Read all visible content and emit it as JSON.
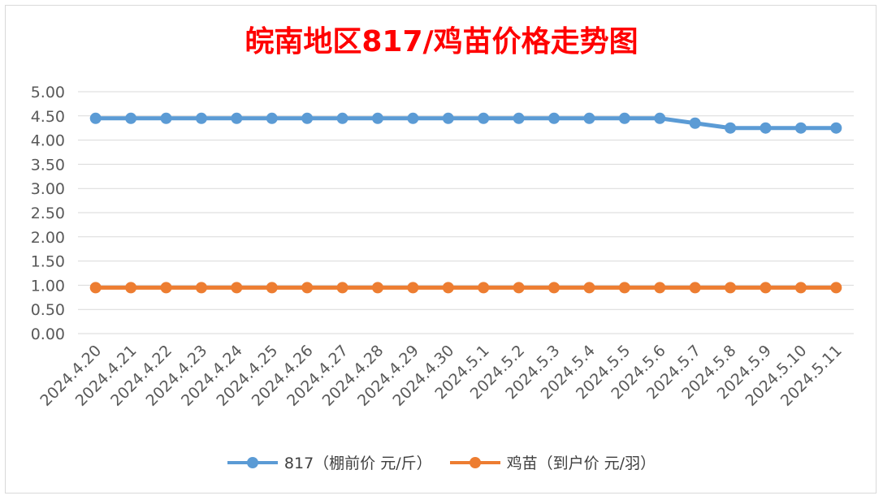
{
  "chart_data": {
    "type": "line",
    "title": "皖南地区817/鸡苗价格走势图",
    "xlabel": "",
    "ylabel": "",
    "ylim": [
      0,
      5
    ],
    "yticks": [
      "0.00",
      "0.50",
      "1.00",
      "1.50",
      "2.00",
      "2.50",
      "3.00",
      "3.50",
      "4.00",
      "4.50",
      "5.00"
    ],
    "grid": true,
    "legend_position": "bottom",
    "categories": [
      "2024.4.20",
      "2024.4.21",
      "2024.4.22",
      "2024.4.23",
      "2024.4.24",
      "2024.4.25",
      "2024.4.26",
      "2024.4.27",
      "2024.4.28",
      "2024.4.29",
      "2024.4.30",
      "2024.5.1",
      "2024.5.2",
      "2024.5.3",
      "2024.5.4",
      "2024.5.5",
      "2024.5.6",
      "2024.5.7",
      "2024.5.8",
      "2024.5.9",
      "2024.5.10",
      "2024.5.11"
    ],
    "series": [
      {
        "name": "817（棚前价 元/斤）",
        "color": "#5b9bd5",
        "values": [
          4.45,
          4.45,
          4.45,
          4.45,
          4.45,
          4.45,
          4.45,
          4.45,
          4.45,
          4.45,
          4.45,
          4.45,
          4.45,
          4.45,
          4.45,
          4.45,
          4.45,
          4.35,
          4.25,
          4.25,
          4.25,
          4.25
        ]
      },
      {
        "name": "鸡苗（到户价 元/羽）",
        "color": "#ed7d31",
        "values": [
          0.95,
          0.95,
          0.95,
          0.95,
          0.95,
          0.95,
          0.95,
          0.95,
          0.95,
          0.95,
          0.95,
          0.95,
          0.95,
          0.95,
          0.95,
          0.95,
          0.95,
          0.95,
          0.95,
          0.95,
          0.95,
          0.95
        ]
      }
    ]
  }
}
